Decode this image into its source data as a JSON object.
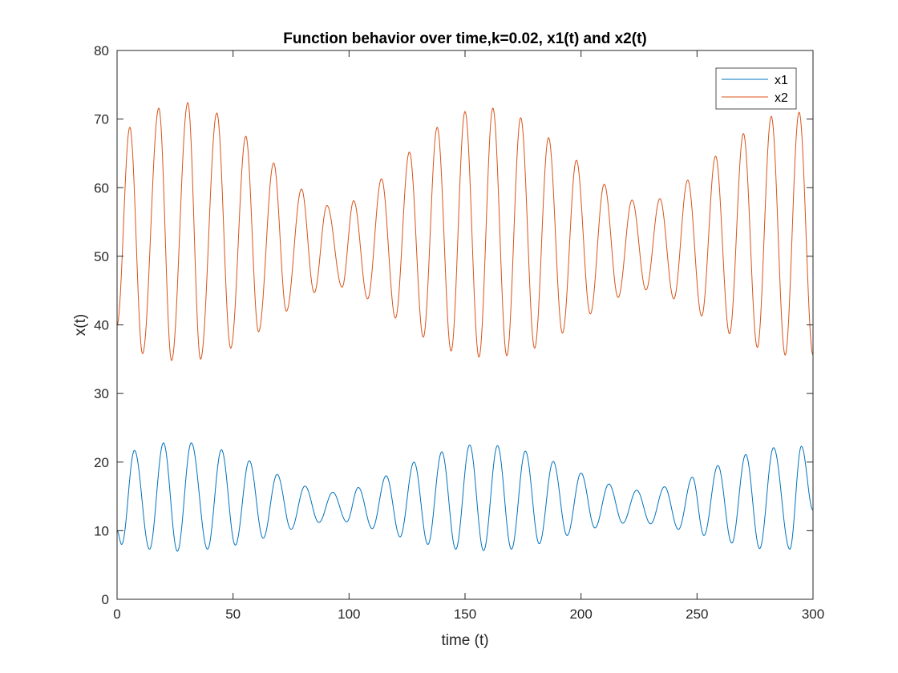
{
  "chart_data": {
    "type": "line",
    "title": "Function behavior over time,k=0.02, x1(t) and x2(t)",
    "xlabel": "time (t)",
    "ylabel": "x(t)",
    "xlim": [
      0,
      300
    ],
    "ylim": [
      0,
      80
    ],
    "x_ticks": [
      0,
      50,
      100,
      150,
      200,
      250,
      300
    ],
    "y_ticks": [
      0,
      10,
      20,
      30,
      40,
      50,
      60,
      70,
      80
    ],
    "grid": false,
    "legend_position": "top-right",
    "series": [
      {
        "name": "x1",
        "color": "#0072BD",
        "start_value": 10,
        "end_value": 13,
        "peaks": [
          [
            7.5,
            21.7
          ],
          [
            20,
            22.8
          ],
          [
            32,
            22.8
          ],
          [
            45,
            21.8
          ],
          [
            57,
            20.2
          ],
          [
            69,
            18.2
          ],
          [
            81,
            16.5
          ],
          [
            93,
            15.6
          ],
          [
            104,
            16.3
          ],
          [
            116,
            18
          ],
          [
            128,
            20
          ],
          [
            140,
            21.5
          ],
          [
            152,
            22.5
          ],
          [
            164,
            22.4
          ],
          [
            176,
            21.6
          ],
          [
            188,
            20.1
          ],
          [
            200,
            18.4
          ],
          [
            212,
            16.8
          ],
          [
            224,
            15.9
          ],
          [
            236,
            16.4
          ],
          [
            248,
            17.8
          ],
          [
            259,
            19.5
          ],
          [
            271,
            21.1
          ],
          [
            283,
            22.1
          ],
          [
            295,
            22.3
          ]
        ],
        "troughs": [
          [
            2,
            8
          ],
          [
            14,
            7.3
          ],
          [
            26,
            7
          ],
          [
            39,
            7.3
          ],
          [
            51,
            7.9
          ],
          [
            63,
            8.9
          ],
          [
            75,
            10.2
          ],
          [
            87,
            11.2
          ],
          [
            99,
            11.3
          ],
          [
            110,
            10.3
          ],
          [
            122,
            9.1
          ],
          [
            134,
            8
          ],
          [
            146,
            7.3
          ],
          [
            158,
            7.1
          ],
          [
            170,
            7.3
          ],
          [
            182,
            8.1
          ],
          [
            194,
            9.3
          ],
          [
            206,
            10.4
          ],
          [
            218,
            11.1
          ],
          [
            230,
            11
          ],
          [
            242,
            10.2
          ],
          [
            253,
            9.3
          ],
          [
            265,
            8.2
          ],
          [
            277,
            7.4
          ],
          [
            290,
            7.3
          ]
        ]
      },
      {
        "name": "x2",
        "color": "#D95319",
        "start_value": 40,
        "end_value": 35.5,
        "peaks": [
          [
            5.5,
            68.8
          ],
          [
            18,
            71.6
          ],
          [
            30.5,
            72.4
          ],
          [
            43,
            70.9
          ],
          [
            55.5,
            67.5
          ],
          [
            67.5,
            63.6
          ],
          [
            79.5,
            59.8
          ],
          [
            90.5,
            57.4
          ],
          [
            102,
            58.1
          ],
          [
            114,
            61.3
          ],
          [
            126,
            65.2
          ],
          [
            138,
            68.8
          ],
          [
            150,
            71.1
          ],
          [
            162,
            71.6
          ],
          [
            174,
            70.2
          ],
          [
            186,
            67.3
          ],
          [
            198,
            64
          ],
          [
            210,
            60.5
          ],
          [
            222,
            58.2
          ],
          [
            234,
            58.4
          ],
          [
            246,
            61.1
          ],
          [
            258,
            64.6
          ],
          [
            270,
            67.9
          ],
          [
            282,
            70.4
          ],
          [
            294,
            71
          ]
        ],
        "troughs": [
          [
            11,
            35.8
          ],
          [
            23.5,
            34.8
          ],
          [
            36,
            35
          ],
          [
            49,
            36.6
          ],
          [
            61,
            39
          ],
          [
            73,
            42
          ],
          [
            85,
            44.7
          ],
          [
            97,
            45.5
          ],
          [
            108,
            43.8
          ],
          [
            120,
            41
          ],
          [
            132,
            38.2
          ],
          [
            144,
            36.2
          ],
          [
            156,
            35.3
          ],
          [
            168,
            35.5
          ],
          [
            180,
            36.6
          ],
          [
            192,
            38.8
          ],
          [
            204,
            41.6
          ],
          [
            216,
            44
          ],
          [
            228,
            45.1
          ],
          [
            240,
            43.8
          ],
          [
            252,
            41.3
          ],
          [
            264,
            38.7
          ],
          [
            276,
            36.7
          ],
          [
            288,
            35.6
          ],
          [
            300,
            35.6
          ]
        ]
      }
    ]
  }
}
